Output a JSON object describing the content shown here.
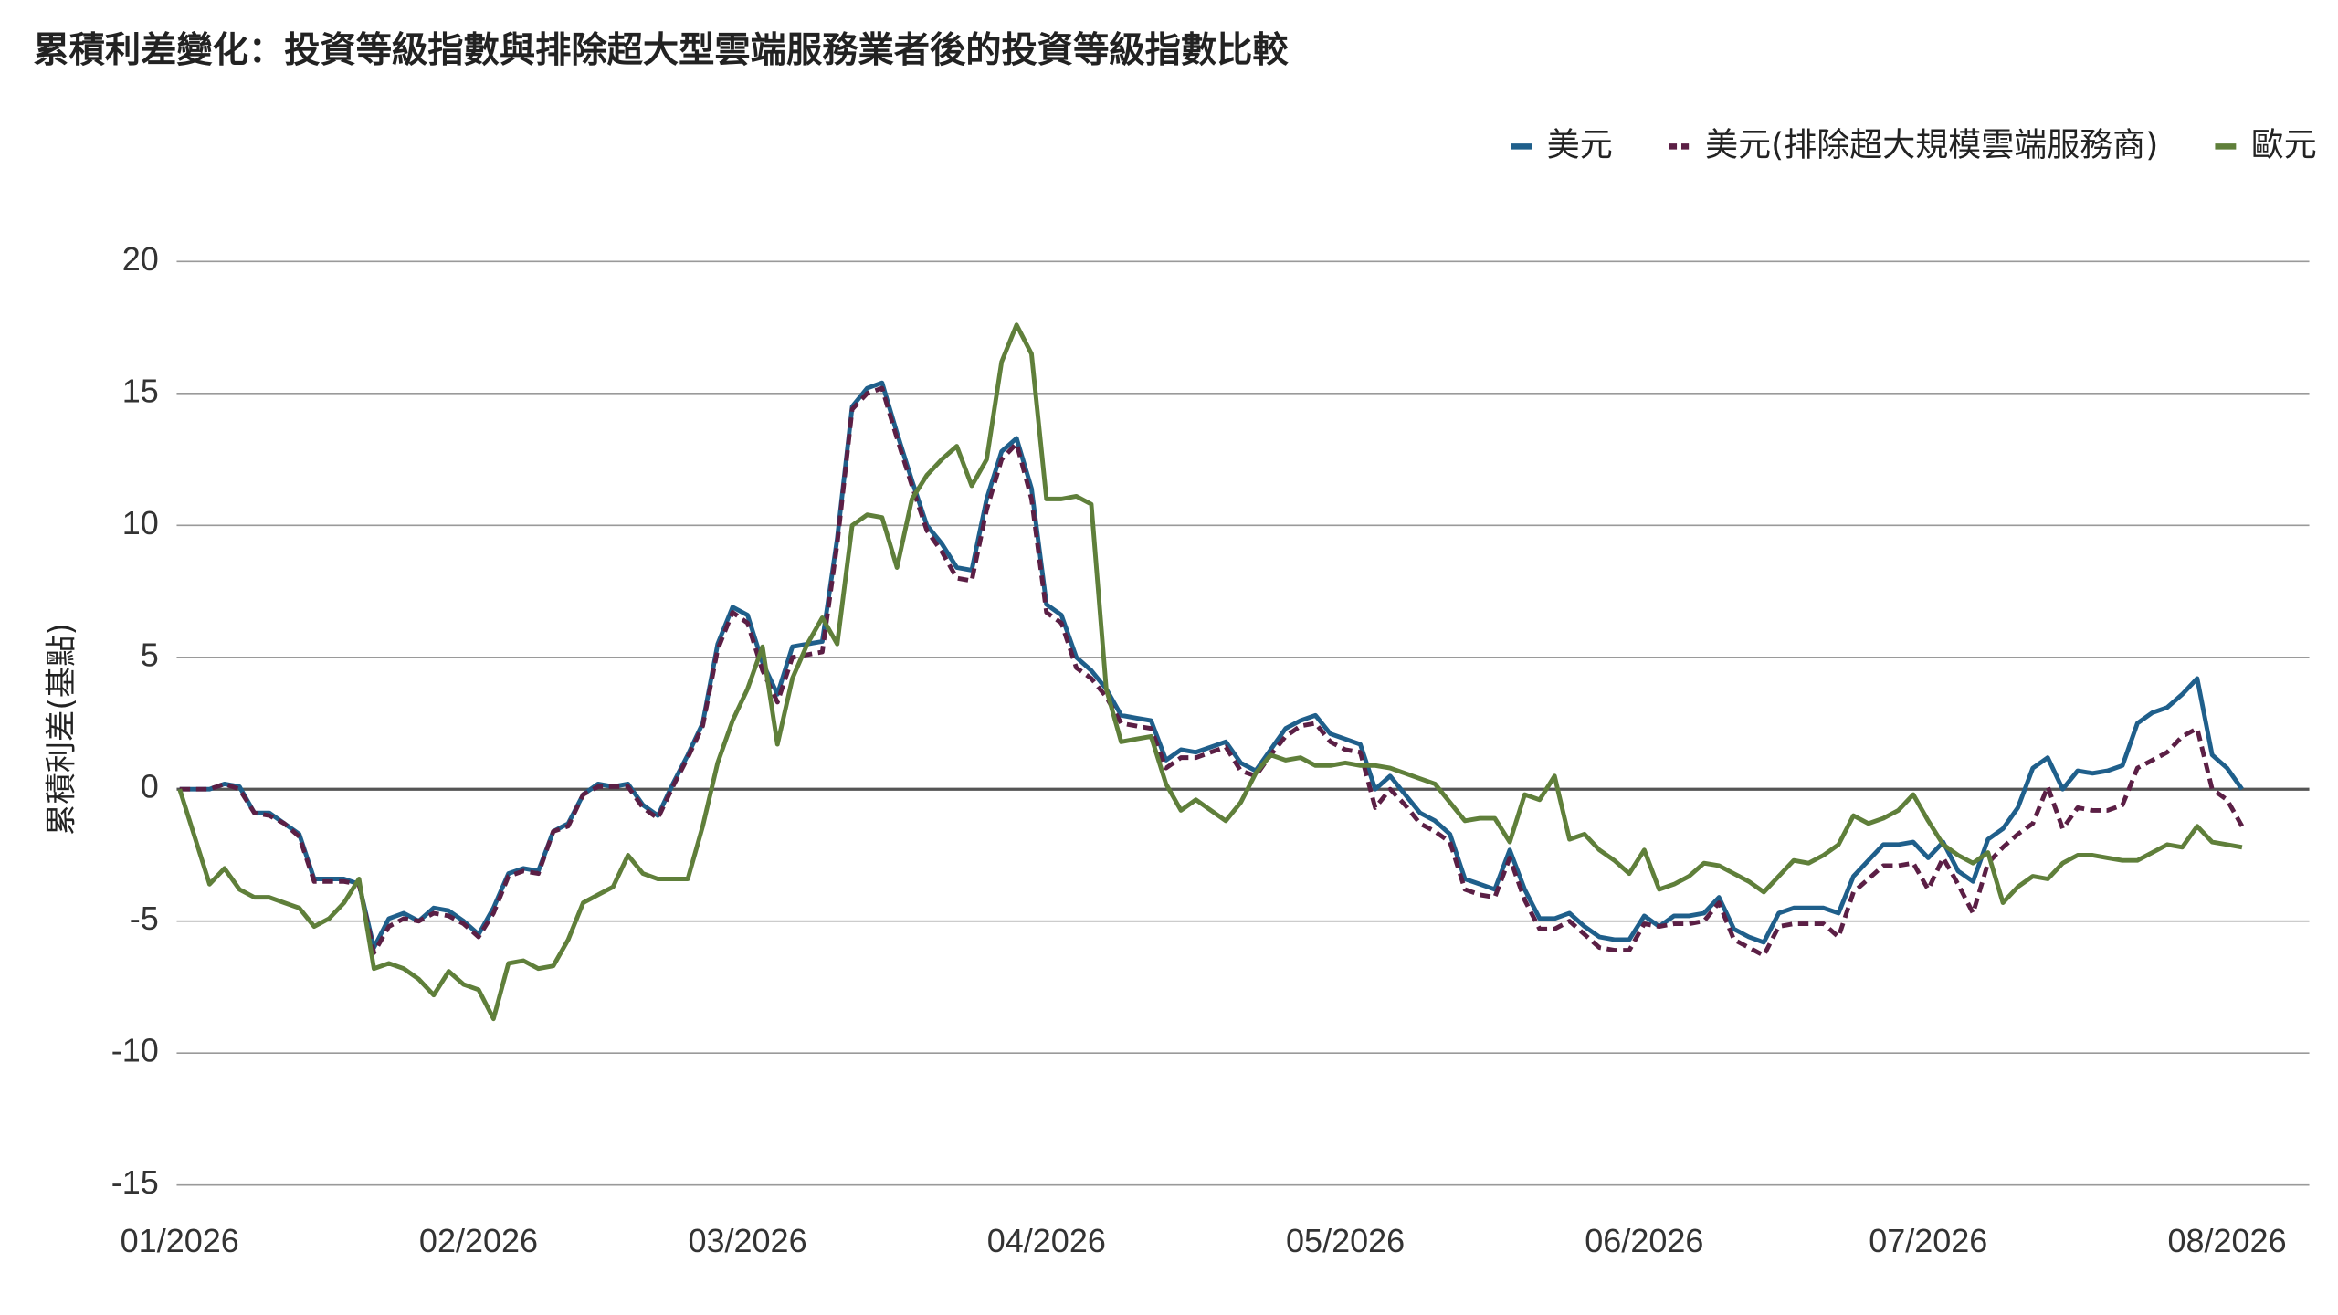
{
  "chart_data": {
    "type": "line",
    "title": "累積利差變化：投資等級指數與排除超大型雲端服務業者後的投資等級指數比較",
    "ylabel": "累積利差(基點)",
    "ylim": [
      -15,
      20
    ],
    "yticks": [
      -15,
      -10,
      -5,
      0,
      5,
      10,
      15,
      20
    ],
    "grid": true,
    "legend": "top-right",
    "categories": [
      "01/2026",
      null,
      null,
      null,
      null,
      null,
      null,
      null,
      null,
      null,
      null,
      null,
      null,
      null,
      null,
      null,
      null,
      null,
      null,
      null,
      "02/2026",
      null,
      null,
      null,
      null,
      null,
      null,
      null,
      null,
      null,
      null,
      null,
      null,
      null,
      null,
      null,
      null,
      null,
      "03/2026",
      null,
      null,
      null,
      null,
      null,
      null,
      null,
      null,
      null,
      null,
      null,
      null,
      null,
      null,
      null,
      null,
      null,
      null,
      null,
      "04/2026",
      null,
      null,
      null,
      null,
      null,
      null,
      null,
      null,
      null,
      null,
      null,
      null,
      null,
      null,
      null,
      null,
      null,
      null,
      null,
      "05/2026",
      null,
      null,
      null,
      null,
      null,
      null,
      null,
      null,
      null,
      null,
      null,
      null,
      null,
      null,
      null,
      null,
      null,
      null,
      null,
      "06/2026",
      null,
      null,
      null,
      null,
      null,
      null,
      null,
      null,
      null,
      null,
      null,
      null,
      null,
      null,
      null,
      null,
      null,
      null,
      "07/2026",
      null,
      null,
      null,
      null,
      null,
      null,
      null,
      null,
      null,
      null,
      null,
      null,
      null,
      null,
      null,
      null,
      null,
      null,
      null,
      "08/2026",
      null
    ],
    "series": [
      {
        "name": "美元",
        "color": "#1f5f8b",
        "line_style": "solid",
        "values": [
          0,
          0,
          0,
          0.2,
          0.1,
          -0.9,
          -0.9,
          -1.3,
          -1.7,
          -3.4,
          -3.4,
          -3.4,
          -3.6,
          -6.0,
          -4.9,
          -4.7,
          -5.0,
          -4.5,
          -4.6,
          -5.0,
          -5.5,
          -4.5,
          -3.2,
          -3.0,
          -3.1,
          -1.6,
          -1.3,
          -0.2,
          0.2,
          0.1,
          0.2,
          -0.6,
          -1.0,
          0.2,
          1.3,
          2.5,
          5.5,
          6.9,
          6.6,
          4.8,
          3.6,
          5.4,
          5.5,
          5.6,
          9.5,
          14.5,
          15.2,
          15.4,
          13.5,
          11.7,
          10.0,
          9.3,
          8.4,
          8.3,
          11.0,
          12.8,
          13.3,
          11.4,
          7.0,
          6.6,
          5.0,
          4.5,
          3.8,
          2.8,
          2.7,
          2.6,
          1.1,
          1.5,
          1.4,
          1.6,
          1.8,
          1.0,
          0.7,
          1.5,
          2.3,
          2.6,
          2.8,
          2.1,
          1.9,
          1.7,
          0.0,
          0.5,
          -0.2,
          -0.9,
          -1.2,
          -1.7,
          -3.4,
          -3.6,
          -3.8,
          -2.3,
          -3.8,
          -4.9,
          -4.9,
          -4.7,
          -5.2,
          -5.6,
          -5.7,
          -5.7,
          -4.8,
          -5.2,
          -4.8,
          -4.8,
          -4.7,
          -4.1,
          -5.3,
          -5.6,
          -5.8,
          -4.7,
          -4.5,
          -4.5,
          -4.5,
          -4.7,
          -3.3,
          -2.7,
          -2.1,
          -2.1,
          -2.0,
          -2.6,
          -2.0,
          -3.1,
          -3.5,
          -1.9,
          -1.5,
          -0.7,
          0.8,
          1.2,
          0.0,
          0.7,
          0.6,
          0.7,
          0.9,
          2.5,
          2.9,
          3.1,
          3.6,
          4.2,
          1.3,
          0.8,
          0.0
        ]
      },
      {
        "name": "美元(排除超大規模雲端服務商)",
        "color": "#5b1f45",
        "line_style": "dashed",
        "values": [
          0,
          0,
          0,
          0.2,
          0,
          -0.9,
          -1.0,
          -1.3,
          -1.8,
          -3.5,
          -3.5,
          -3.5,
          -3.6,
          -6.2,
          -5.2,
          -4.9,
          -5.0,
          -4.7,
          -4.8,
          -5.1,
          -5.6,
          -4.7,
          -3.3,
          -3.1,
          -3.2,
          -1.6,
          -1.4,
          -0.2,
          0.1,
          0.1,
          0.1,
          -0.7,
          -1.1,
          0.1,
          1.2,
          2.4,
          5.3,
          6.7,
          6.3,
          4.5,
          3.3,
          5.0,
          5.1,
          5.2,
          9.3,
          14.4,
          15.0,
          15.2,
          13.3,
          11.5,
          9.8,
          9.0,
          8.0,
          7.9,
          10.6,
          12.5,
          13.1,
          11.0,
          6.7,
          6.3,
          4.6,
          4.2,
          3.5,
          2.5,
          2.4,
          2.3,
          0.8,
          1.2,
          1.2,
          1.4,
          1.6,
          0.7,
          0.5,
          1.3,
          2.0,
          2.4,
          2.5,
          1.8,
          1.5,
          1.4,
          -0.7,
          0.0,
          -0.6,
          -1.3,
          -1.6,
          -2.0,
          -3.8,
          -4.0,
          -4.1,
          -2.6,
          -4.2,
          -5.3,
          -5.3,
          -5.0,
          -5.5,
          -6.0,
          -6.1,
          -6.1,
          -5.1,
          -5.2,
          -5.1,
          -5.1,
          -5.0,
          -4.3,
          -5.7,
          -6.0,
          -6.3,
          -5.2,
          -5.1,
          -5.1,
          -5.1,
          -5.6,
          -3.9,
          -3.4,
          -2.9,
          -2.9,
          -2.8,
          -3.8,
          -2.6,
          -3.6,
          -4.7,
          -2.8,
          -2.2,
          -1.7,
          -1.3,
          0.1,
          -1.5,
          -0.7,
          -0.8,
          -0.8,
          -0.6,
          0.8,
          1.1,
          1.4,
          2.0,
          2.3,
          0.0,
          -0.4,
          -1.4
        ]
      },
      {
        "name": "歐元",
        "color": "#5f7f3a",
        "line_style": "solid",
        "values": [
          0,
          -1.8,
          -3.6,
          -3.0,
          -3.8,
          -4.1,
          -4.1,
          -4.3,
          -4.5,
          -5.2,
          -4.9,
          -4.3,
          -3.4,
          -6.8,
          -6.6,
          -6.8,
          -7.2,
          -7.8,
          -6.9,
          -7.4,
          -7.6,
          -8.7,
          -6.6,
          -6.5,
          -6.8,
          -6.7,
          -5.7,
          -4.3,
          -4.0,
          -3.7,
          -2.5,
          -3.2,
          -3.4,
          -3.4,
          -3.4,
          -1.4,
          1.0,
          2.6,
          3.8,
          5.4,
          1.7,
          4.2,
          5.5,
          6.5,
          5.5,
          10.0,
          10.4,
          10.3,
          8.4,
          11.0,
          11.9,
          12.5,
          13.0,
          11.5,
          12.5,
          16.2,
          17.6,
          16.5,
          11.0,
          11.0,
          11.1,
          10.8,
          3.8,
          1.8,
          1.9,
          2.0,
          0.2,
          -0.8,
          -0.4,
          -0.8,
          -1.2,
          -0.5,
          0.6,
          1.3,
          1.1,
          1.2,
          0.9,
          0.9,
          1.0,
          0.9,
          0.9,
          0.8,
          0.6,
          0.4,
          0.2,
          -0.5,
          -1.2,
          -1.1,
          -1.1,
          -2.0,
          -0.2,
          -0.4,
          0.5,
          -1.9,
          -1.7,
          -2.3,
          -2.7,
          -3.2,
          -2.3,
          -3.8,
          -3.6,
          -3.3,
          -2.8,
          -2.9,
          -3.2,
          -3.5,
          -3.9,
          -3.3,
          -2.7,
          -2.8,
          -2.5,
          -2.1,
          -1.0,
          -1.3,
          -1.1,
          -0.8,
          -0.2,
          -1.2,
          -2.1,
          -2.5,
          -2.8,
          -2.4,
          -4.3,
          -3.7,
          -3.3,
          -3.4,
          -2.8,
          -2.5,
          -2.5,
          -2.6,
          -2.7,
          -2.7,
          -2.4,
          -2.1,
          -2.2,
          -1.4,
          -2.0,
          -2.1,
          -2.2
        ]
      }
    ]
  }
}
